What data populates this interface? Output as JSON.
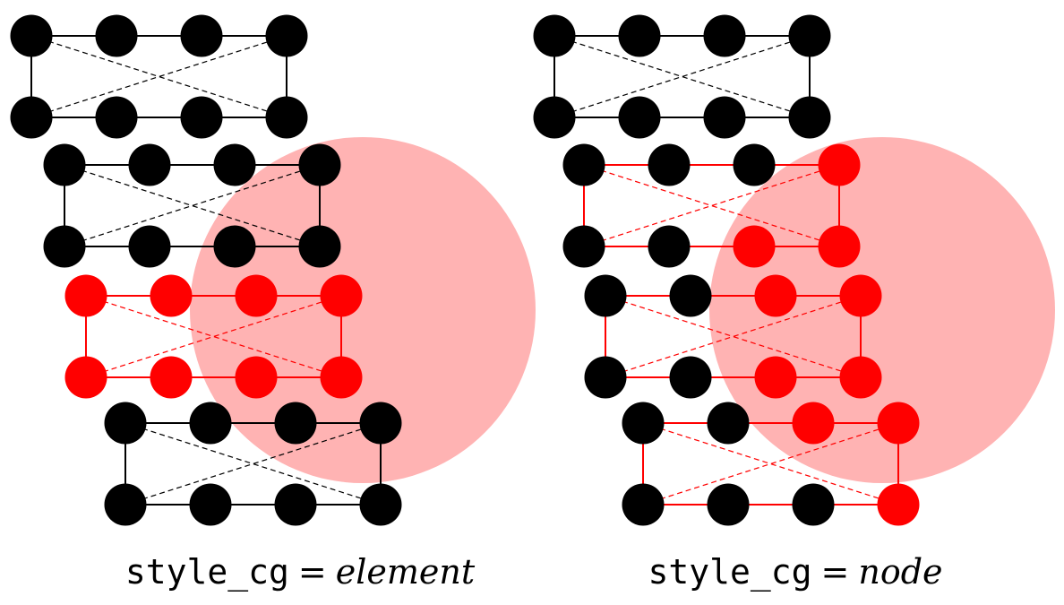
{
  "colors": {
    "selected": "#ff0000",
    "unselected": "#000000",
    "selection_region": "#ffb3b3",
    "background": "#ffffff"
  },
  "panels": [
    {
      "caption": {
        "code": "style_cg",
        "eq": "=",
        "value": "element"
      },
      "elements": [
        {
          "selected": false,
          "nodes": [
            false,
            false,
            false,
            false,
            false,
            false,
            false,
            false
          ]
        },
        {
          "selected": false,
          "nodes": [
            false,
            false,
            false,
            false,
            false,
            false,
            false,
            false
          ]
        },
        {
          "selected": true,
          "nodes": [
            true,
            true,
            true,
            true,
            true,
            true,
            true,
            true
          ]
        },
        {
          "selected": false,
          "nodes": [
            false,
            false,
            false,
            false,
            false,
            false,
            false,
            false
          ]
        }
      ]
    },
    {
      "caption": {
        "code": "style_cg",
        "eq": "=",
        "value": "node"
      },
      "elements": [
        {
          "selected": false,
          "nodes": [
            false,
            false,
            false,
            false,
            false,
            false,
            false,
            false
          ]
        },
        {
          "selected": true,
          "nodes": [
            false,
            false,
            false,
            true,
            false,
            false,
            true,
            true
          ]
        },
        {
          "selected": true,
          "nodes": [
            false,
            false,
            true,
            true,
            false,
            false,
            true,
            true
          ]
        },
        {
          "selected": true,
          "nodes": [
            false,
            false,
            true,
            true,
            false,
            false,
            false,
            true
          ]
        }
      ]
    }
  ]
}
